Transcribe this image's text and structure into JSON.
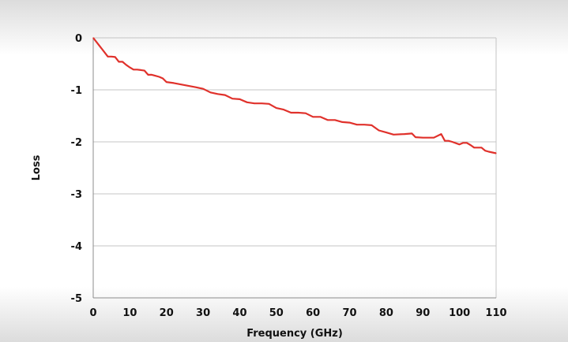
{
  "chart_data": {
    "type": "line",
    "title": "",
    "xlabel": "Frequency (GHz)",
    "ylabel": "Loss",
    "xlim": [
      0,
      110
    ],
    "ylim": [
      -5,
      0
    ],
    "x_ticks": [
      0,
      10,
      20,
      30,
      40,
      50,
      60,
      70,
      80,
      90,
      100,
      110
    ],
    "y_ticks": [
      0,
      -1,
      -2,
      -3,
      -4,
      -5
    ],
    "grid": "horizontal",
    "legend": "none",
    "series": [
      {
        "color": "#e0312b",
        "x": [
          0,
          2,
          4,
          5,
          6,
          7,
          8,
          9,
          10,
          11,
          12,
          13,
          14,
          15,
          16,
          17,
          18,
          19,
          20,
          22,
          25,
          28,
          30,
          32,
          34,
          36,
          38,
          40,
          42,
          44,
          46,
          48,
          50,
          52,
          54,
          56,
          58,
          60,
          62,
          64,
          66,
          68,
          70,
          72,
          74,
          76,
          78,
          80,
          82,
          85,
          87,
          88,
          90,
          93,
          95,
          96,
          97,
          98,
          100,
          101,
          102,
          103,
          104,
          106,
          107,
          108,
          110
        ],
        "y": [
          0,
          -0.18,
          -0.36,
          -0.36,
          -0.37,
          -0.46,
          -0.46,
          -0.52,
          -0.57,
          -0.61,
          -0.61,
          -0.62,
          -0.63,
          -0.71,
          -0.71,
          -0.73,
          -0.75,
          -0.78,
          -0.85,
          -0.87,
          -0.91,
          -0.95,
          -0.98,
          -1.05,
          -1.08,
          -1.1,
          -1.17,
          -1.18,
          -1.24,
          -1.26,
          -1.26,
          -1.27,
          -1.35,
          -1.38,
          -1.44,
          -1.44,
          -1.45,
          -1.52,
          -1.52,
          -1.58,
          -1.58,
          -1.62,
          -1.63,
          -1.67,
          -1.67,
          -1.68,
          -1.78,
          -1.82,
          -1.86,
          -1.85,
          -1.84,
          -1.91,
          -1.92,
          -1.92,
          -1.85,
          -1.98,
          -1.98,
          -2.0,
          -2.05,
          -2.02,
          -2.02,
          -2.06,
          -2.11,
          -2.11,
          -2.17,
          -2.19,
          -2.22
        ]
      }
    ]
  }
}
